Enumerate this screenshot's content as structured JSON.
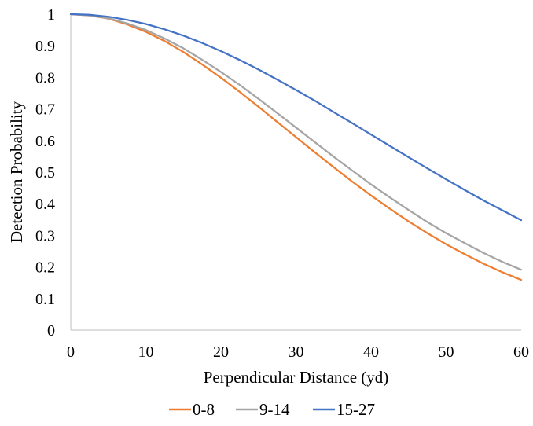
{
  "chart_data": {
    "type": "line",
    "title": "",
    "xlabel": "Perpendicular Distance (yd)",
    "ylabel": "Detection Probability",
    "xlim": [
      0,
      60
    ],
    "ylim": [
      0,
      1
    ],
    "xticks": [
      0,
      10,
      20,
      30,
      40,
      50,
      60
    ],
    "yticks": [
      0,
      0.1,
      0.2,
      0.3,
      0.4,
      0.5,
      0.6,
      0.7,
      0.8,
      0.9,
      1
    ],
    "ytick_labels": [
      "0",
      "0.1",
      "0.2",
      "0.3",
      "0.4",
      "0.5",
      "0.6",
      "0.7",
      "0.8",
      "0.9",
      "1"
    ],
    "grid": false,
    "legend_position": "bottom",
    "x": [
      0,
      2.5,
      5,
      7.5,
      10,
      12.5,
      15,
      17.5,
      20,
      22.5,
      25,
      27.5,
      30,
      32.5,
      35,
      37.5,
      40,
      42.5,
      45,
      47.5,
      50,
      52.5,
      55,
      57.5,
      60
    ],
    "series": [
      {
        "name": "0-8",
        "color": "#ED7D31",
        "values": [
          1.0,
          0.996,
          0.986,
          0.968,
          0.944,
          0.915,
          0.88,
          0.841,
          0.799,
          0.754,
          0.707,
          0.659,
          0.611,
          0.563,
          0.516,
          0.47,
          0.426,
          0.384,
          0.344,
          0.307,
          0.272,
          0.24,
          0.21,
          0.183,
          0.159
        ]
      },
      {
        "name": "9-14",
        "color": "#A5A5A5",
        "values": [
          1.0,
          0.996,
          0.987,
          0.971,
          0.95,
          0.923,
          0.892,
          0.856,
          0.817,
          0.776,
          0.732,
          0.687,
          0.641,
          0.595,
          0.549,
          0.505,
          0.461,
          0.42,
          0.38,
          0.342,
          0.307,
          0.275,
          0.244,
          0.216,
          0.191
        ]
      },
      {
        "name": "15-27",
        "color": "#4472C4",
        "values": [
          1.0,
          0.998,
          0.992,
          0.982,
          0.969,
          0.952,
          0.932,
          0.909,
          0.883,
          0.855,
          0.825,
          0.793,
          0.76,
          0.726,
          0.69,
          0.655,
          0.619,
          0.583,
          0.547,
          0.512,
          0.477,
          0.443,
          0.41,
          0.379,
          0.348
        ]
      }
    ]
  }
}
